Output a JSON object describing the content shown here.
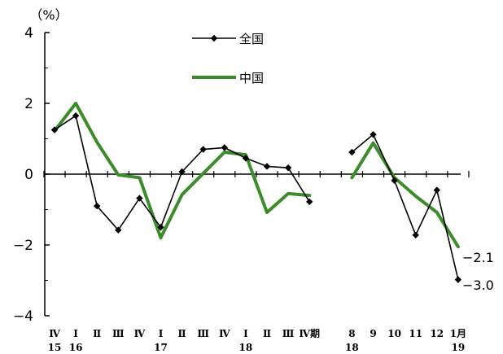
{
  "chart_data": {
    "type": "line",
    "ylabel": "（%）",
    "ylim": [
      -4,
      4
    ],
    "yticks": [
      4,
      2,
      0,
      -2,
      -4
    ],
    "ytick_labels": [
      "4",
      "2",
      "0",
      "−2",
      "−4"
    ],
    "grid": false,
    "legend_position": "top-center",
    "categories": [
      {
        "top": "Ⅳ",
        "bottom": "15"
      },
      {
        "top": "Ⅰ",
        "bottom": "16"
      },
      {
        "top": "Ⅱ",
        "bottom": ""
      },
      {
        "top": "Ⅲ",
        "bottom": ""
      },
      {
        "top": "Ⅳ",
        "bottom": ""
      },
      {
        "top": "Ⅰ",
        "bottom": "17"
      },
      {
        "top": "Ⅱ",
        "bottom": ""
      },
      {
        "top": "Ⅲ",
        "bottom": ""
      },
      {
        "top": "Ⅳ",
        "bottom": ""
      },
      {
        "top": "Ⅰ",
        "bottom": "18"
      },
      {
        "top": "Ⅱ",
        "bottom": ""
      },
      {
        "top": "Ⅲ",
        "bottom": ""
      },
      {
        "top": "Ⅳ期",
        "bottom": ""
      },
      {
        "top": "",
        "bottom": ""
      },
      {
        "top": "8",
        "bottom": "18"
      },
      {
        "top": "9",
        "bottom": ""
      },
      {
        "top": "10",
        "bottom": ""
      },
      {
        "top": "11",
        "bottom": ""
      },
      {
        "top": "12",
        "bottom": ""
      },
      {
        "top": "1月",
        "bottom": "19"
      }
    ],
    "series": [
      {
        "name": "全国",
        "color": "#000000",
        "marker": "diamond",
        "values": [
          1.25,
          1.65,
          -0.9,
          -1.58,
          -0.68,
          -1.5,
          0.07,
          0.7,
          0.75,
          0.45,
          0.22,
          0.18,
          -0.78,
          null,
          0.62,
          1.12,
          -0.18,
          -1.72,
          -0.45,
          -2.98
        ]
      },
      {
        "name": "中国",
        "color": "#3c8c2a",
        "marker": "none",
        "values": [
          1.22,
          2.0,
          0.9,
          -0.02,
          -0.1,
          -1.8,
          -0.58,
          0.02,
          0.62,
          0.55,
          -1.08,
          -0.55,
          -0.6,
          null,
          -0.1,
          0.88,
          -0.1,
          -0.62,
          -1.08,
          -2.05
        ]
      }
    ],
    "annotations": [
      {
        "text": "−2.1",
        "series": "中国"
      },
      {
        "text": "−3.0",
        "series": "全国"
      }
    ]
  }
}
